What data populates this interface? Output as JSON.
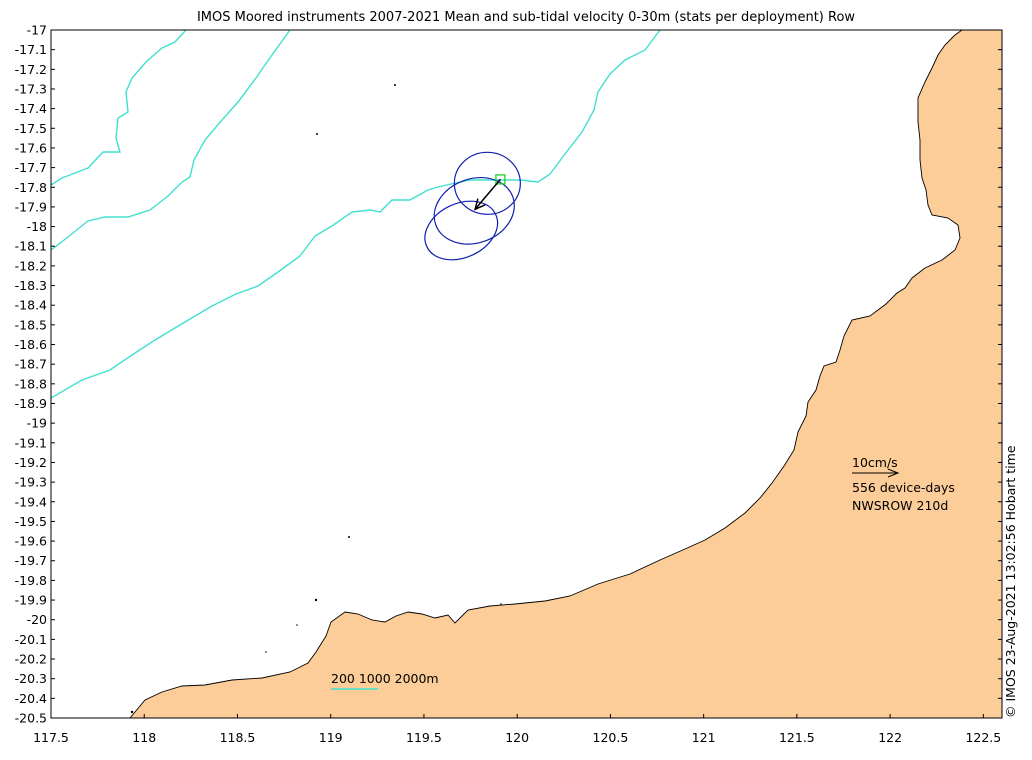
{
  "title": "IMOS Moored instruments 2007-2021 Mean and sub-tidal velocity 0-30m (stats per deployment) Row",
  "credit": "© IMOS 23-Aug-2021 13:02:56 Hobart time",
  "colors": {
    "land": "#fccc99",
    "coast": "#000000",
    "isobath": "#40e0d0",
    "ellipse": "#1020b0",
    "site": "#20d020",
    "arrow": "#000000"
  },
  "axes": {
    "lon_range": [
      117.5,
      122.6
    ],
    "lat_range": [
      -20.5,
      -17.0
    ],
    "lon_ticks": [
      "117.5",
      "118",
      "118.5",
      "119",
      "119.5",
      "120",
      "120.5",
      "121",
      "121.5",
      "122",
      "122.5"
    ],
    "lat_ticks": [
      "-17",
      "-17.1",
      "-17.2",
      "-17.3",
      "-17.4",
      "-17.5",
      "-17.6",
      "-17.7",
      "-17.8",
      "-17.9",
      "-18",
      "-18.1",
      "-18.2",
      "-18.3",
      "-18.4",
      "-18.5",
      "-18.6",
      "-18.7",
      "-18.8",
      "-18.9",
      "-19",
      "-19.1",
      "-19.2",
      "-19.3",
      "-19.4",
      "-19.5",
      "-19.6",
      "-19.7",
      "-19.8",
      "-19.9",
      "-20",
      "-20.1",
      "-20.2",
      "-20.3",
      "-20.4",
      "-20.5"
    ]
  },
  "isobath_legend": "200 1000 2000m",
  "velocity_legend": {
    "scale_label": "10cm/s",
    "device_days": "556 device-days",
    "site_label": "NWSROW 210d"
  },
  "site": {
    "name": "NWSROW",
    "lon": 119.91,
    "lat": -17.76
  },
  "mean_velocity": {
    "u_cm_s": -5.5,
    "v_cm_s": -6.5
  },
  "ellipses": [
    {
      "center_lon": 119.84,
      "center_lat": -17.78
    },
    {
      "center_lon": 119.77,
      "center_lat": -17.92
    },
    {
      "center_lon": 119.7,
      "center_lat": -18.02
    }
  ]
}
